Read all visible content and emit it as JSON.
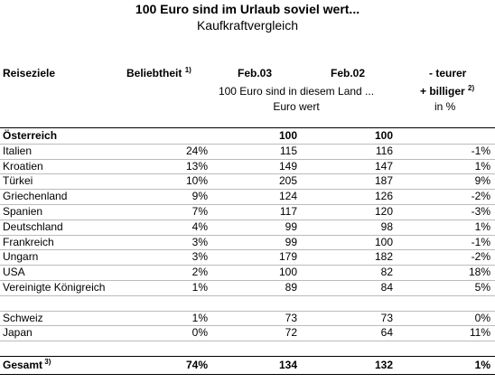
{
  "title": "100 Euro sind im Urlaub soviel wert...",
  "subtitle": "Kaufkraftvergleich",
  "header": {
    "reiseziele": "Reiseziele",
    "beliebtheit": "Beliebtheit",
    "beliebtheit_note": "1)",
    "feb03": "Feb.03",
    "feb02": "Feb.02",
    "teurer": "- teurer",
    "billiger": "+ billiger",
    "billiger_note": "2)",
    "desc_line1": "100 Euro sind in diesem Land ...",
    "desc_line2": "Euro wert",
    "unit": "in %"
  },
  "sections": [
    {
      "rows": [
        {
          "name": "Österreich",
          "feb03": "100",
          "feb02": "100"
        },
        {
          "name": "Italien",
          "beliebtheit": "24%",
          "feb03": "115",
          "feb02": "116",
          "change": "-1%"
        },
        {
          "name": "Kroatien",
          "beliebtheit": "13%",
          "feb03": "149",
          "feb02": "147",
          "change": "1%"
        },
        {
          "name": "Türkei",
          "beliebtheit": "10%",
          "feb03": "205",
          "feb02": "187",
          "change": "9%"
        },
        {
          "name": "Griechenland",
          "beliebtheit": "9%",
          "feb03": "124",
          "feb02": "126",
          "change": "-2%"
        },
        {
          "name": "Spanien",
          "beliebtheit": "7%",
          "feb03": "117",
          "feb02": "120",
          "change": "-3%"
        },
        {
          "name": "Deutschland",
          "beliebtheit": "4%",
          "feb03": "99",
          "feb02": "98",
          "change": "1%"
        },
        {
          "name": "Frankreich",
          "beliebtheit": "3%",
          "feb03": "99",
          "feb02": "100",
          "change": "-1%"
        },
        {
          "name": "Ungarn",
          "beliebtheit": "3%",
          "feb03": "179",
          "feb02": "182",
          "change": "-2%"
        },
        {
          "name": "USA",
          "beliebtheit": "2%",
          "feb03": "100",
          "feb02": "82",
          "change": "18%"
        },
        {
          "name": "Vereinigte Königreich",
          "beliebtheit": "1%",
          "feb03": "89",
          "feb02": "84",
          "change": "5%"
        }
      ]
    },
    {
      "rows": [
        {
          "name": "Schweiz",
          "beliebtheit": "1%",
          "feb03": "73",
          "feb02": "73",
          "change": "0%"
        },
        {
          "name": "Japan",
          "beliebtheit": "0%",
          "feb03": "72",
          "feb02": "64",
          "change": "11%"
        }
      ]
    }
  ],
  "total": {
    "name": "Gesamt",
    "note": "3)",
    "beliebtheit": "74%",
    "feb03": "134",
    "feb02": "132",
    "change": "1%"
  }
}
